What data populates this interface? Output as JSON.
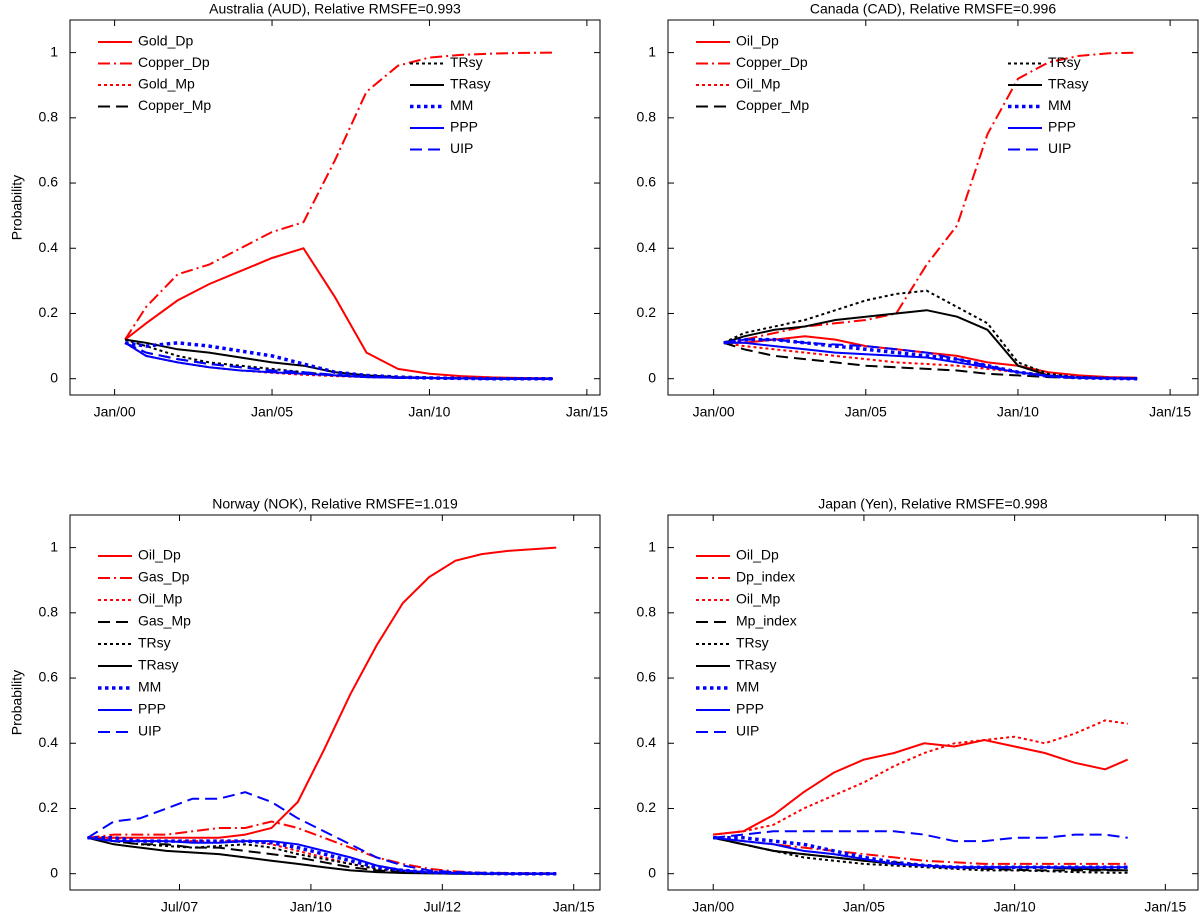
{
  "chart_data": [
    {
      "type": "line",
      "title": "Australia (AUD), Relative RMSFE=0.993",
      "ylabel": "Probability",
      "legend": "upper left",
      "x": [
        "2000-05",
        "2001-01",
        "2002-01",
        "2003-01",
        "2004-01",
        "2005-01",
        "2006-01",
        "2007-01",
        "2008-01",
        "2009-01",
        "2010-01",
        "2011-01",
        "2012-01",
        "2013-01",
        "2013-12"
      ],
      "xlim": [
        "1998-08",
        "2015-06"
      ],
      "xticks": [
        {
          "value": "2000-01",
          "label": "Jan/00"
        },
        {
          "value": "2005-01",
          "label": "Jan/05"
        },
        {
          "value": "2010-01",
          "label": "Jan/10"
        },
        {
          "value": "2015-01",
          "label": "Jan/15"
        }
      ],
      "ylim": [
        -0.05,
        1.1
      ],
      "yticks": [
        0,
        0.2,
        0.4,
        0.6,
        0.8,
        1
      ],
      "series": [
        {
          "name": "Gold_Dp",
          "color": "#ff0000",
          "style": "solid",
          "values": [
            0.12,
            0.17,
            0.24,
            0.29,
            0.33,
            0.37,
            0.4,
            0.25,
            0.08,
            0.03,
            0.015,
            0.008,
            0.004,
            0.002,
            0.001
          ]
        },
        {
          "name": "Copper_Dp",
          "color": "#ff0000",
          "style": "dashdot",
          "values": [
            0.12,
            0.22,
            0.32,
            0.35,
            0.4,
            0.45,
            0.48,
            0.67,
            0.88,
            0.96,
            0.985,
            0.993,
            0.997,
            0.999,
            1
          ]
        },
        {
          "name": "Gold_Mp",
          "color": "#ff0000",
          "style": "dotted",
          "values": [
            0.11,
            0.07,
            0.05,
            0.035,
            0.025,
            0.018,
            0.012,
            0.008,
            0.005,
            0.003,
            0.002,
            0.001,
            0,
            0,
            0
          ]
        },
        {
          "name": "Copper_Mp",
          "color": "#000000",
          "style": "dashed",
          "values": [
            0.11,
            0.08,
            0.06,
            0.045,
            0.035,
            0.025,
            0.018,
            0.01,
            0.006,
            0.003,
            0.002,
            0.001,
            0,
            0,
            0
          ]
        },
        {
          "name": "TRsy",
          "color": "#000000",
          "style": "dotted",
          "values": [
            0.12,
            0.1,
            0.07,
            0.05,
            0.04,
            0.03,
            0.02,
            0.01,
            0.005,
            0.003,
            0.002,
            0.001,
            0,
            0,
            0
          ]
        },
        {
          "name": "TRasy",
          "color": "#000000",
          "style": "solid",
          "values": [
            0.12,
            0.11,
            0.09,
            0.08,
            0.065,
            0.05,
            0.04,
            0.02,
            0.01,
            0.005,
            0.003,
            0.001,
            0,
            0,
            0
          ]
        },
        {
          "name": "MM",
          "color": "#0000ff",
          "style": "bold-dotted",
          "values": [
            0.11,
            0.1,
            0.11,
            0.1,
            0.085,
            0.07,
            0.045,
            0.02,
            0.01,
            0.005,
            0.002,
            0.001,
            0,
            0,
            0
          ]
        },
        {
          "name": "PPP",
          "color": "#0000ff",
          "style": "solid",
          "values": [
            0.11,
            0.07,
            0.05,
            0.035,
            0.025,
            0.02,
            0.015,
            0.01,
            0.005,
            0.003,
            0.002,
            0.001,
            0,
            0,
            0
          ]
        },
        {
          "name": "UIP",
          "color": "#0000ff",
          "style": "dashed",
          "values": [
            0.11,
            0.08,
            0.06,
            0.045,
            0.035,
            0.025,
            0.02,
            0.012,
            0.006,
            0.003,
            0.002,
            0.001,
            0,
            0,
            0
          ]
        }
      ]
    },
    {
      "type": "line",
      "title": "Canada (CAD), Relative RMSFE=0.996",
      "legend": "upper left",
      "x": [
        "2000-05",
        "2001-01",
        "2002-01",
        "2003-01",
        "2004-01",
        "2005-01",
        "2006-01",
        "2007-01",
        "2008-01",
        "2009-01",
        "2010-01",
        "2011-01",
        "2012-01",
        "2013-01",
        "2013-12"
      ],
      "xlim": [
        "1998-07",
        "2015-12"
      ],
      "xticks": [
        {
          "value": "2000-01",
          "label": "Jan/00"
        },
        {
          "value": "2005-01",
          "label": "Jan/05"
        },
        {
          "value": "2010-01",
          "label": "Jan/10"
        },
        {
          "value": "2015-01",
          "label": "Jan/15"
        }
      ],
      "ylim": [
        -0.05,
        1.1
      ],
      "yticks": [
        0,
        0.2,
        0.4,
        0.6,
        0.8,
        1
      ],
      "series": [
        {
          "name": "Oil_Dp",
          "color": "#ff0000",
          "style": "solid",
          "values": [
            0.11,
            0.11,
            0.12,
            0.13,
            0.12,
            0.1,
            0.09,
            0.08,
            0.07,
            0.05,
            0.04,
            0.02,
            0.01,
            0.005,
            0.003
          ]
        },
        {
          "name": "Copper_Dp",
          "color": "#ff0000",
          "style": "dashdot",
          "values": [
            0.11,
            0.12,
            0.14,
            0.16,
            0.17,
            0.18,
            0.2,
            0.35,
            0.47,
            0.75,
            0.92,
            0.97,
            0.99,
            0.998,
            1
          ]
        },
        {
          "name": "Oil_Mp",
          "color": "#ff0000",
          "style": "dotted",
          "values": [
            0.11,
            0.1,
            0.09,
            0.08,
            0.07,
            0.06,
            0.05,
            0.045,
            0.04,
            0.03,
            0.02,
            0.01,
            0.005,
            0.002,
            0.001
          ]
        },
        {
          "name": "Copper_Mp",
          "color": "#000000",
          "style": "dashed",
          "values": [
            0.11,
            0.09,
            0.07,
            0.06,
            0.05,
            0.04,
            0.035,
            0.03,
            0.025,
            0.015,
            0.01,
            0.005,
            0.002,
            0.001,
            0
          ]
        },
        {
          "name": "TRsy",
          "color": "#000000",
          "style": "dotted",
          "values": [
            0.11,
            0.14,
            0.16,
            0.18,
            0.21,
            0.24,
            0.26,
            0.27,
            0.22,
            0.17,
            0.05,
            0.015,
            0.005,
            0.002,
            0.001
          ]
        },
        {
          "name": "TRasy",
          "color": "#000000",
          "style": "solid",
          "values": [
            0.11,
            0.13,
            0.15,
            0.16,
            0.18,
            0.19,
            0.2,
            0.21,
            0.19,
            0.15,
            0.04,
            0.01,
            0.003,
            0.001,
            0
          ]
        },
        {
          "name": "MM",
          "color": "#0000ff",
          "style": "bold-dotted",
          "values": [
            0.11,
            0.12,
            0.12,
            0.11,
            0.1,
            0.09,
            0.08,
            0.07,
            0.06,
            0.04,
            0.02,
            0.008,
            0.003,
            0.001,
            0
          ]
        },
        {
          "name": "PPP",
          "color": "#0000ff",
          "style": "solid",
          "values": [
            0.11,
            0.11,
            0.1,
            0.09,
            0.08,
            0.075,
            0.07,
            0.065,
            0.05,
            0.035,
            0.02,
            0.008,
            0.003,
            0.001,
            0
          ]
        },
        {
          "name": "UIP",
          "color": "#0000ff",
          "style": "dashed",
          "values": [
            0.11,
            0.12,
            0.12,
            0.11,
            0.105,
            0.1,
            0.09,
            0.08,
            0.06,
            0.04,
            0.02,
            0.008,
            0.003,
            0.001,
            0
          ]
        }
      ]
    },
    {
      "type": "line",
      "title": "Norway (NOK), Relative RMSFE=1.019",
      "ylabel": "Probability",
      "legend": "upper left",
      "x": [
        "2005-10",
        "2006-04",
        "2006-10",
        "2007-04",
        "2007-10",
        "2008-04",
        "2008-10",
        "2009-04",
        "2009-10",
        "2010-04",
        "2010-10",
        "2011-04",
        "2011-10",
        "2012-04",
        "2012-10",
        "2013-04",
        "2013-10",
        "2014-09"
      ],
      "xlim": [
        "2005-06",
        "2015-07"
      ],
      "xticks": [
        {
          "value": "2007-07",
          "label": "Jul/07"
        },
        {
          "value": "2010-01",
          "label": "Jan/10"
        },
        {
          "value": "2012-07",
          "label": "Jul/12"
        },
        {
          "value": "2015-01",
          "label": "Jan/15"
        }
      ],
      "ylim": [
        -0.05,
        1.1
      ],
      "yticks": [
        0,
        0.2,
        0.4,
        0.6,
        0.8,
        1
      ],
      "series": [
        {
          "name": "Oil_Dp",
          "color": "#ff0000",
          "style": "solid",
          "values": [
            0.11,
            0.11,
            0.11,
            0.11,
            0.11,
            0.11,
            0.12,
            0.14,
            0.22,
            0.38,
            0.55,
            0.7,
            0.83,
            0.91,
            0.96,
            0.98,
            0.99,
            1
          ]
        },
        {
          "name": "Gas_Dp",
          "color": "#ff0000",
          "style": "dashdot",
          "values": [
            0.11,
            0.12,
            0.12,
            0.12,
            0.13,
            0.14,
            0.14,
            0.16,
            0.14,
            0.11,
            0.08,
            0.05,
            0.03,
            0.015,
            0.007,
            0.003,
            0.002,
            0.001
          ]
        },
        {
          "name": "Oil_Mp",
          "color": "#ff0000",
          "style": "dotted",
          "values": [
            0.11,
            0.11,
            0.1,
            0.1,
            0.1,
            0.1,
            0.1,
            0.09,
            0.07,
            0.05,
            0.03,
            0.015,
            0.007,
            0.003,
            0.002,
            0.001,
            0,
            0
          ]
        },
        {
          "name": "Gas_Mp",
          "color": "#000000",
          "style": "dashed",
          "values": [
            0.11,
            0.1,
            0.09,
            0.09,
            0.08,
            0.08,
            0.07,
            0.06,
            0.05,
            0.035,
            0.02,
            0.01,
            0.005,
            0.002,
            0.001,
            0,
            0,
            0
          ]
        },
        {
          "name": "TRsy",
          "color": "#000000",
          "style": "dotted",
          "values": [
            0.11,
            0.1,
            0.09,
            0.085,
            0.08,
            0.085,
            0.09,
            0.08,
            0.06,
            0.045,
            0.03,
            0.015,
            0.007,
            0.003,
            0.001,
            0,
            0,
            0
          ]
        },
        {
          "name": "TRasy",
          "color": "#000000",
          "style": "solid",
          "values": [
            0.11,
            0.09,
            0.08,
            0.07,
            0.065,
            0.06,
            0.05,
            0.04,
            0.03,
            0.02,
            0.01,
            0.005,
            0.002,
            0.001,
            0,
            0,
            0,
            0
          ]
        },
        {
          "name": "MM",
          "color": "#0000ff",
          "style": "bold-dotted",
          "values": [
            0.11,
            0.11,
            0.1,
            0.1,
            0.1,
            0.1,
            0.1,
            0.095,
            0.08,
            0.06,
            0.04,
            0.02,
            0.01,
            0.004,
            0.002,
            0.001,
            0,
            0
          ]
        },
        {
          "name": "PPP",
          "color": "#0000ff",
          "style": "solid",
          "values": [
            0.11,
            0.1,
            0.1,
            0.1,
            0.095,
            0.095,
            0.1,
            0.1,
            0.09,
            0.07,
            0.05,
            0.025,
            0.01,
            0.004,
            0.002,
            0.001,
            0,
            0
          ]
        },
        {
          "name": "UIP",
          "color": "#0000ff",
          "style": "dashed",
          "values": [
            0.11,
            0.16,
            0.17,
            0.2,
            0.23,
            0.23,
            0.25,
            0.22,
            0.17,
            0.13,
            0.09,
            0.05,
            0.025,
            0.01,
            0.005,
            0.002,
            0.001,
            0
          ]
        }
      ]
    },
    {
      "type": "line",
      "title": "Japan (Yen), Relative RMSFE=0.998",
      "legend": "upper left",
      "x": [
        "2000-01",
        "2001-01",
        "2002-01",
        "2003-01",
        "2004-01",
        "2005-01",
        "2006-01",
        "2007-01",
        "2008-01",
        "2009-01",
        "2010-01",
        "2011-01",
        "2012-01",
        "2013-01",
        "2013-10"
      ],
      "xlim": [
        "1998-07",
        "2016-02"
      ],
      "xticks": [
        {
          "value": "2000-01",
          "label": "Jan/00"
        },
        {
          "value": "2005-01",
          "label": "Jan/05"
        },
        {
          "value": "2010-01",
          "label": "Jan/10"
        },
        {
          "value": "2015-01",
          "label": "Jan/15"
        }
      ],
      "ylim": [
        -0.05,
        1.1
      ],
      "yticks": [
        0,
        0.2,
        0.4,
        0.6,
        0.8,
        1
      ],
      "series": [
        {
          "name": "Oil_Dp",
          "color": "#ff0000",
          "style": "solid",
          "values": [
            0.12,
            0.13,
            0.18,
            0.25,
            0.31,
            0.35,
            0.37,
            0.4,
            0.39,
            0.41,
            0.39,
            0.37,
            0.34,
            0.32,
            0.35
          ]
        },
        {
          "name": "Dp_index",
          "color": "#ff0000",
          "style": "dashdot",
          "values": [
            0.11,
            0.1,
            0.09,
            0.08,
            0.07,
            0.06,
            0.05,
            0.04,
            0.035,
            0.03,
            0.03,
            0.03,
            0.03,
            0.03,
            0.03
          ]
        },
        {
          "name": "Oil_Mp",
          "color": "#ff0000",
          "style": "dotted",
          "values": [
            0.12,
            0.13,
            0.15,
            0.2,
            0.24,
            0.28,
            0.33,
            0.37,
            0.4,
            0.41,
            0.42,
            0.4,
            0.43,
            0.47,
            0.46
          ]
        },
        {
          "name": "Mp_index",
          "color": "#000000",
          "style": "dashed",
          "values": [
            0.11,
            0.09,
            0.07,
            0.06,
            0.05,
            0.04,
            0.035,
            0.025,
            0.02,
            0.015,
            0.012,
            0.01,
            0.01,
            0.01,
            0.01
          ]
        },
        {
          "name": "TRsy",
          "color": "#000000",
          "style": "dotted",
          "values": [
            0.11,
            0.09,
            0.07,
            0.05,
            0.04,
            0.03,
            0.025,
            0.02,
            0.015,
            0.01,
            0.01,
            0.008,
            0.005,
            0.003,
            0.003
          ]
        },
        {
          "name": "TRasy",
          "color": "#000000",
          "style": "solid",
          "values": [
            0.11,
            0.09,
            0.07,
            0.06,
            0.05,
            0.04,
            0.03,
            0.025,
            0.02,
            0.02,
            0.02,
            0.02,
            0.015,
            0.012,
            0.01
          ]
        },
        {
          "name": "MM",
          "color": "#0000ff",
          "style": "bold-dotted",
          "values": [
            0.11,
            0.11,
            0.1,
            0.09,
            0.07,
            0.05,
            0.035,
            0.025,
            0.02,
            0.02,
            0.02,
            0.02,
            0.02,
            0.02,
            0.02
          ]
        },
        {
          "name": "PPP",
          "color": "#0000ff",
          "style": "solid",
          "values": [
            0.11,
            0.1,
            0.09,
            0.07,
            0.06,
            0.045,
            0.03,
            0.025,
            0.02,
            0.02,
            0.02,
            0.02,
            0.02,
            0.02,
            0.02
          ]
        },
        {
          "name": "UIP",
          "color": "#0000ff",
          "style": "dashed",
          "values": [
            0.11,
            0.12,
            0.13,
            0.13,
            0.13,
            0.13,
            0.13,
            0.12,
            0.1,
            0.1,
            0.11,
            0.11,
            0.12,
            0.12,
            0.11
          ]
        }
      ]
    }
  ]
}
